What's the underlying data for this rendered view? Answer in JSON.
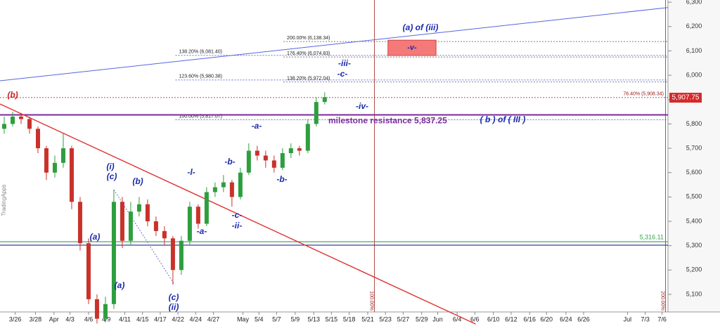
{
  "chart_data": {
    "type": "candlestick",
    "watermark": "TradingApps",
    "xlim": [
      0,
      79.2
    ],
    "ylim": [
      4970,
      6309
    ],
    "yticks": [
      {
        "value": 5100,
        "label": "5,100"
      },
      {
        "value": 5200,
        "label": "5,200"
      },
      {
        "value": 5300,
        "label": "5,300"
      },
      {
        "value": 5400,
        "label": "5,400"
      },
      {
        "value": 5500,
        "label": "5,500"
      },
      {
        "value": 5600,
        "label": "5,600"
      },
      {
        "value": 5700,
        "label": "5,700"
      },
      {
        "value": 5800,
        "label": "5,800"
      },
      {
        "value": 5900,
        "label": "5,900"
      },
      {
        "value": 6000,
        "label": "6,000"
      },
      {
        "value": 6100,
        "label": "6,100"
      },
      {
        "value": 6200,
        "label": "6,200"
      },
      {
        "value": 6300,
        "label": "6,300"
      }
    ],
    "xticks": [
      {
        "value": 1.8,
        "label": "3/26"
      },
      {
        "value": 4.2,
        "label": "3/28"
      },
      {
        "value": 6.4,
        "label": "Apr"
      },
      {
        "value": 8.3,
        "label": "4/3"
      },
      {
        "value": 10.5,
        "label": "4/6"
      },
      {
        "value": 12.6,
        "label": "4/9"
      },
      {
        "value": 14.8,
        "label": "4/11"
      },
      {
        "value": 16.9,
        "label": "4/15"
      },
      {
        "value": 19,
        "label": "4/17"
      },
      {
        "value": 21.1,
        "label": "4/22"
      },
      {
        "value": 23.2,
        "label": "4/24"
      },
      {
        "value": 25.3,
        "label": "4/27"
      },
      {
        "value": 28.8,
        "label": "May"
      },
      {
        "value": 30.7,
        "label": "5/4"
      },
      {
        "value": 32.8,
        "label": "5/7"
      },
      {
        "value": 35,
        "label": "5/9"
      },
      {
        "value": 37.2,
        "label": "5/13"
      },
      {
        "value": 39.3,
        "label": "5/15"
      },
      {
        "value": 41.4,
        "label": "5/18"
      },
      {
        "value": 43.6,
        "label": "5/21"
      },
      {
        "value": 45.7,
        "label": "5/23"
      },
      {
        "value": 47.8,
        "label": "5/27"
      },
      {
        "value": 50,
        "label": "5/29"
      },
      {
        "value": 51.9,
        "label": "Jun"
      },
      {
        "value": 54.2,
        "label": "6/4"
      },
      {
        "value": 56.3,
        "label": "6/6"
      },
      {
        "value": 58.5,
        "label": "6/10"
      },
      {
        "value": 60.6,
        "label": "6/12"
      },
      {
        "value": 62.8,
        "label": "6/16"
      },
      {
        "value": 64.8,
        "label": "6/20"
      },
      {
        "value": 67.1,
        "label": "6/24"
      },
      {
        "value": 69.2,
        "label": "6/26"
      },
      {
        "value": 74.4,
        "label": "Jul"
      },
      {
        "value": 76.5,
        "label": "7/3"
      },
      {
        "value": 78.5,
        "label": "7/6"
      }
    ],
    "up_color": "#2e9e3e",
    "down_color": "#c8322b",
    "x": [
      0.5,
      1.5,
      2.5,
      3.5,
      4.5,
      5.5,
      6.5,
      7.5,
      8.5,
      9.5,
      10.5,
      11.5,
      12.5,
      13.5,
      14.5,
      15.5,
      16.5,
      17.5,
      18.5,
      19.5,
      20.5,
      21.5,
      22.5,
      23.5,
      24.5,
      25.5,
      26.5,
      27.5,
      28.5,
      29.5,
      30.5,
      31.5,
      32.5,
      33.5,
      34.5,
      35.5,
      36.5,
      37.5,
      38.5
    ],
    "open": [
      5780,
      5800,
      5830,
      5820,
      5780,
      5700,
      5600,
      5640,
      5700,
      5480,
      5310,
      5080,
      5000,
      5060,
      5480,
      5320,
      5440,
      5470,
      5400,
      5360,
      5330,
      5200,
      5320,
      5460,
      5390,
      5520,
      5540,
      5560,
      5500,
      5600,
      5690,
      5670,
      5650,
      5620,
      5680,
      5700,
      5690,
      5800,
      5890
    ],
    "high": [
      5830,
      5850,
      5845,
      5830,
      5790,
      5710,
      5670,
      5760,
      5710,
      5500,
      5330,
      5100,
      5090,
      5530,
      5500,
      5480,
      5500,
      5490,
      5420,
      5380,
      5340,
      5340,
      5480,
      5470,
      5540,
      5560,
      5590,
      5570,
      5620,
      5720,
      5710,
      5690,
      5670,
      5700,
      5720,
      5710,
      5820,
      5910,
      5930
    ],
    "low": [
      5760,
      5790,
      5800,
      5760,
      5680,
      5570,
      5580,
      5620,
      5450,
      5280,
      5060,
      4980,
      4985,
      5040,
      5290,
      5300,
      5420,
      5380,
      5340,
      5300,
      5140,
      5180,
      5300,
      5370,
      5380,
      5500,
      5520,
      5460,
      5490,
      5590,
      5650,
      5620,
      5600,
      5610,
      5660,
      5670,
      5680,
      5790,
      5880
    ],
    "close": [
      5800,
      5830,
      5820,
      5780,
      5700,
      5600,
      5640,
      5700,
      5480,
      5310,
      5080,
      5000,
      5060,
      5480,
      5320,
      5440,
      5470,
      5400,
      5360,
      5330,
      5200,
      5320,
      5460,
      5390,
      5520,
      5540,
      5560,
      5500,
      5600,
      5690,
      5670,
      5650,
      5620,
      5680,
      5700,
      5690,
      5800,
      5890,
      5910
    ],
    "levels": [
      {
        "label": "200.00% (6,138.34)",
        "value": 6138.34,
        "from": 33.6,
        "color": "#555555"
      },
      {
        "label": "138.20% (6,081.40)",
        "value": 6081.4,
        "from": 20.8,
        "color": "#3344cc"
      },
      {
        "label": "176.40% (6,074.83)",
        "value": 6074.83,
        "from": 33.6,
        "color": "#555555"
      },
      {
        "label": "123.60% (5,980.38)",
        "value": 5980.38,
        "from": 20.8,
        "color": "#3344cc"
      },
      {
        "label": "138.20% (5,972.04)",
        "value": 5972.04,
        "from": 33.6,
        "color": "#555555"
      },
      {
        "label": "76.40% (5,908.34)",
        "value": 5908.34,
        "from": 0,
        "color": "#a01818"
      },
      {
        "label": "100.00% (5,817.07)",
        "value": 5817.07,
        "from": 20.8,
        "color": "#3344cc"
      }
    ],
    "resistance": {
      "label": "milestone resistance 5,837.25",
      "value": 5837.25,
      "color": "#7a2a9a"
    },
    "support": {
      "label": "5,316.11",
      "value": 5316.11,
      "color": "#3aa04a"
    },
    "base_line": {
      "value": 5302,
      "color": "#2a2a9a"
    },
    "price_tag": {
      "value": 5907.75,
      "label": "5,907.75"
    },
    "vlines": [
      {
        "value": 44.4,
        "label": "100.00%"
      },
      {
        "value": 78.9,
        "label": "200.00%"
      }
    ],
    "trendlines": [
      {
        "color": "#5566dd",
        "points": [
          [
            0,
            5977
          ],
          [
            79.2,
            6278
          ]
        ]
      },
      {
        "color": "#e03030",
        "points": [
          [
            0,
            5882
          ],
          [
            56.4,
            4978
          ]
        ]
      },
      {
        "color": "#6677cc",
        "points": [
          [
            13.5,
            5530
          ],
          [
            20.7,
            5140
          ]
        ]
      }
    ],
    "box": {
      "label": "-v-",
      "top": 6144,
      "bottom": 6081,
      "x": [
        46,
        51.7
      ]
    },
    "waves": [
      "(a) of (iii)",
      "-iii-",
      "-c-",
      "-iv-",
      "( b ) of ( III )",
      "-a-",
      "-b-",
      "-b-",
      "-l-",
      "-c-",
      "-ii-",
      "-a-",
      "(i)",
      "(c)",
      "(b)",
      "(a)",
      "(a)",
      "(c)",
      "(ii)",
      "(b)"
    ]
  }
}
